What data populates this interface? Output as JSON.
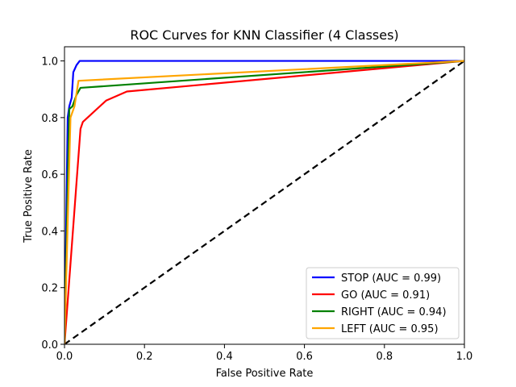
{
  "chart_data": {
    "type": "line",
    "title": "ROC Curves for KNN Classifier (4 Classes)",
    "xlabel": "False Positive Rate",
    "ylabel": "True Positive Rate",
    "xlim": [
      0,
      1
    ],
    "ylim": [
      0,
      1.05
    ],
    "xticks": [
      0,
      0.2,
      0.4,
      0.6,
      0.8,
      1
    ],
    "xtick_labels": [
      "0.0",
      "0.2",
      "0.4",
      "0.6",
      "0.8",
      "1.0"
    ],
    "yticks": [
      0,
      0.2,
      0.4,
      0.6,
      0.8,
      1
    ],
    "ytick_labels": [
      "0.0",
      "0.2",
      "0.4",
      "0.6",
      "0.8",
      "1.0"
    ],
    "grid": false,
    "legend_position": "lower-right",
    "series": [
      {
        "name": "STOP (AUC = 0.99)",
        "color": "#0000ff",
        "x": [
          0,
          0.008,
          0.012,
          0.018,
          0.022,
          0.03,
          0.038,
          1
        ],
        "y": [
          0,
          0.8,
          0.84,
          0.87,
          0.96,
          0.985,
          1.0,
          1.0
        ]
      },
      {
        "name": "GO (AUC = 0.91)",
        "color": "#ff0000",
        "x": [
          0,
          0.04,
          0.046,
          0.104,
          0.156,
          1
        ],
        "y": [
          0,
          0.76,
          0.785,
          0.86,
          0.892,
          1.0
        ]
      },
      {
        "name": "RIGHT (AUC = 0.94)",
        "color": "#008000",
        "x": [
          0,
          0.012,
          0.02,
          0.03,
          0.04,
          1
        ],
        "y": [
          0,
          0.83,
          0.84,
          0.88,
          0.905,
          1.0
        ]
      },
      {
        "name": "LEFT (AUC = 0.95)",
        "color": "#ffa500",
        "x": [
          0,
          0.015,
          0.025,
          0.035,
          1
        ],
        "y": [
          0,
          0.8,
          0.84,
          0.93,
          1.0
        ]
      }
    ],
    "reference_line": {
      "color": "#000000",
      "x": [
        0,
        1
      ],
      "y": [
        0,
        1
      ]
    }
  }
}
